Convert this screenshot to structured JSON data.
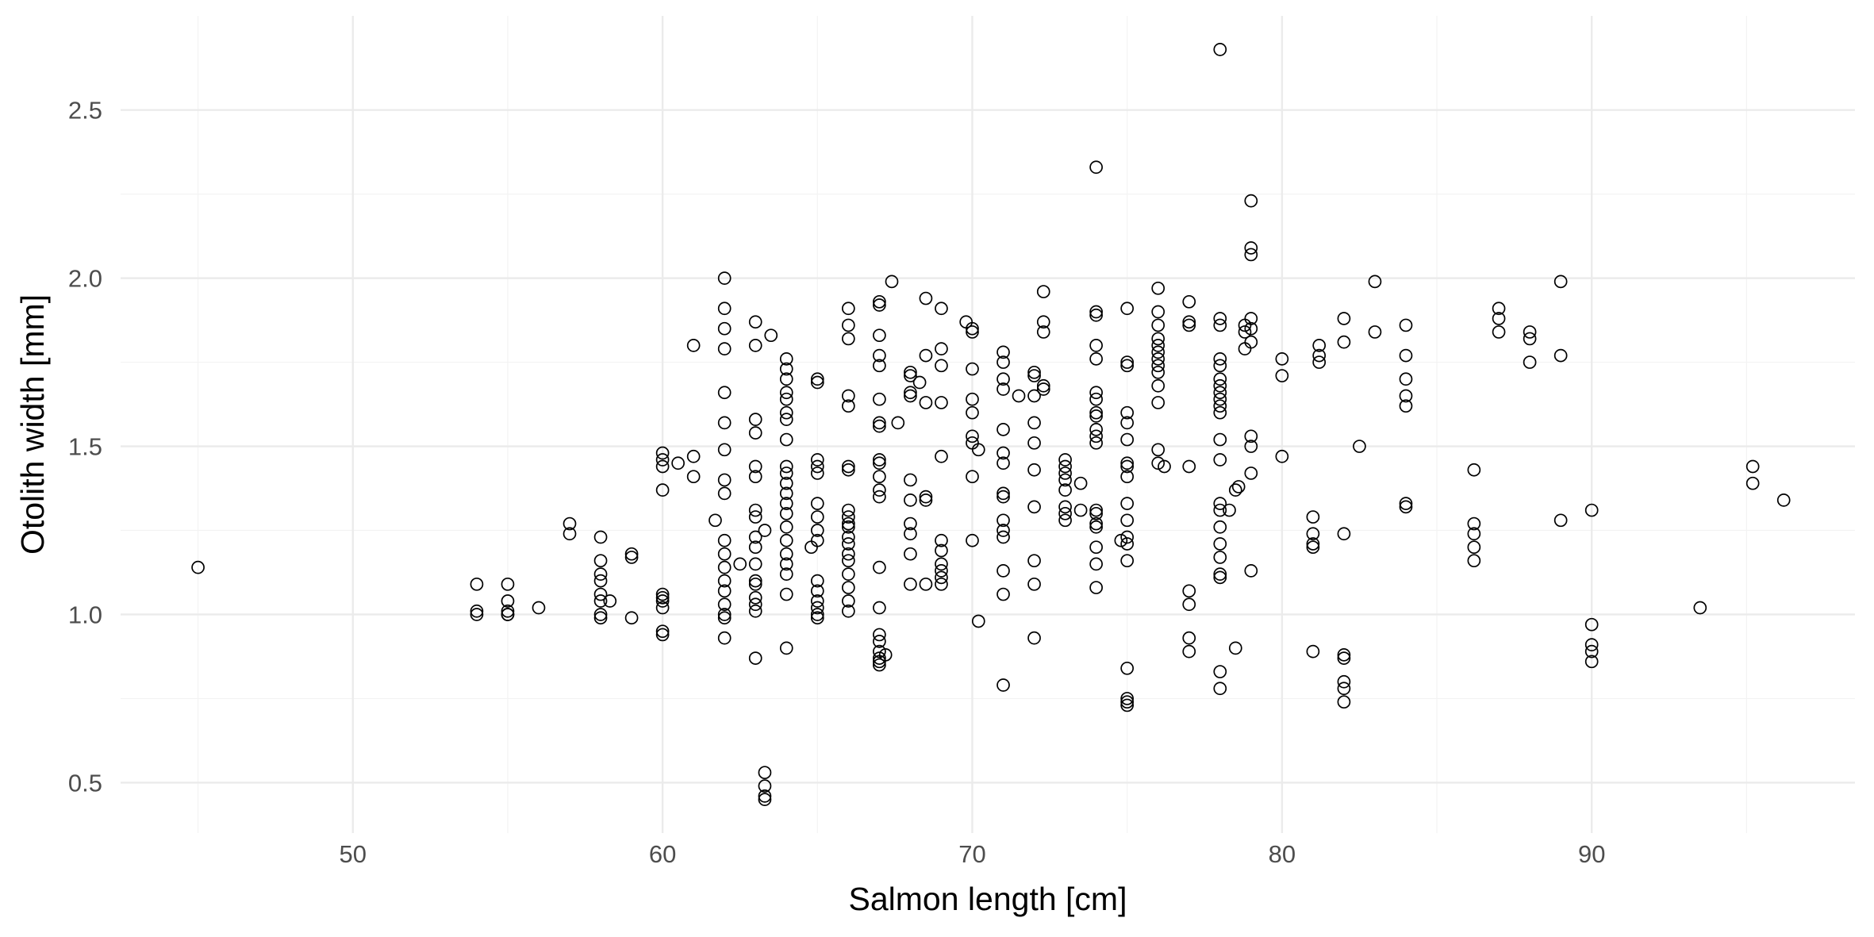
{
  "chart_data": {
    "type": "scatter",
    "title": "",
    "xlabel": "Salmon length [cm]",
    "ylabel": "Otolith width [mm]",
    "xlim": [
      42.5,
      98.5
    ],
    "ylim": [
      0.35,
      2.78
    ],
    "x_major_ticks": [
      50,
      60,
      70,
      80,
      90
    ],
    "x_minor_ticks": [
      45,
      55,
      65,
      75,
      85,
      95
    ],
    "y_major_ticks": [
      0.5,
      1.0,
      1.5,
      2.0,
      2.5
    ],
    "y_minor_ticks": [
      0.75,
      1.25,
      1.75,
      2.25
    ],
    "x_tick_labels": [
      "50",
      "60",
      "70",
      "80",
      "90"
    ],
    "y_tick_labels": [
      "0.5",
      "1.0",
      "1.5",
      "2.0",
      "2.5"
    ],
    "grid": true,
    "theme": "minimal",
    "marker": "open-circle",
    "marker_color": "#000000",
    "points": [
      [
        45,
        1.14
      ],
      [
        54,
        1.09
      ],
      [
        54,
        1.01
      ],
      [
        54,
        1.0
      ],
      [
        55,
        1.09
      ],
      [
        55,
        1.04
      ],
      [
        55,
        1.01
      ],
      [
        55,
        1.0
      ],
      [
        55,
        1.0
      ],
      [
        56,
        1.02
      ],
      [
        57,
        1.27
      ],
      [
        57,
        1.24
      ],
      [
        58,
        1.23
      ],
      [
        58,
        1.16
      ],
      [
        58,
        1.12
      ],
      [
        58,
        1.1
      ],
      [
        58,
        1.06
      ],
      [
        58,
        1.04
      ],
      [
        58,
        1.0
      ],
      [
        58,
        0.99
      ],
      [
        58.3,
        1.04
      ],
      [
        59,
        1.18
      ],
      [
        59,
        1.17
      ],
      [
        59,
        0.99
      ],
      [
        60,
        1.48
      ],
      [
        60,
        1.46
      ],
      [
        60,
        1.44
      ],
      [
        60,
        1.37
      ],
      [
        60,
        1.06
      ],
      [
        60,
        1.05
      ],
      [
        60,
        1.04
      ],
      [
        60,
        1.02
      ],
      [
        60,
        0.95
      ],
      [
        60,
        0.94
      ],
      [
        60.5,
        1.45
      ],
      [
        61,
        1.8
      ],
      [
        61,
        1.47
      ],
      [
        61,
        1.41
      ],
      [
        61.7,
        1.28
      ],
      [
        62,
        2.0
      ],
      [
        62,
        1.91
      ],
      [
        62,
        1.85
      ],
      [
        62,
        1.79
      ],
      [
        62,
        1.66
      ],
      [
        62,
        1.57
      ],
      [
        62,
        1.49
      ],
      [
        62,
        1.4
      ],
      [
        62,
        1.36
      ],
      [
        62,
        1.22
      ],
      [
        62,
        1.18
      ],
      [
        62,
        1.14
      ],
      [
        62,
        1.1
      ],
      [
        62,
        1.07
      ],
      [
        62,
        1.03
      ],
      [
        62,
        1.0
      ],
      [
        62,
        0.99
      ],
      [
        62,
        0.93
      ],
      [
        62.5,
        1.15
      ],
      [
        63,
        1.87
      ],
      [
        63,
        1.8
      ],
      [
        63,
        1.58
      ],
      [
        63,
        1.54
      ],
      [
        63,
        1.44
      ],
      [
        63,
        1.41
      ],
      [
        63,
        1.31
      ],
      [
        63,
        1.29
      ],
      [
        63,
        1.23
      ],
      [
        63,
        1.2
      ],
      [
        63,
        1.15
      ],
      [
        63,
        1.1
      ],
      [
        63,
        1.09
      ],
      [
        63,
        1.05
      ],
      [
        63,
        1.03
      ],
      [
        63,
        1.01
      ],
      [
        63,
        0.87
      ],
      [
        63.3,
        1.25
      ],
      [
        63.3,
        0.53
      ],
      [
        63.3,
        0.49
      ],
      [
        63.3,
        0.46
      ],
      [
        63.3,
        0.45
      ],
      [
        63.5,
        1.83
      ],
      [
        64,
        1.76
      ],
      [
        64,
        1.73
      ],
      [
        64,
        1.7
      ],
      [
        64,
        1.66
      ],
      [
        64,
        1.64
      ],
      [
        64,
        1.6
      ],
      [
        64,
        1.58
      ],
      [
        64,
        1.52
      ],
      [
        64,
        1.44
      ],
      [
        64,
        1.42
      ],
      [
        64,
        1.39
      ],
      [
        64,
        1.36
      ],
      [
        64,
        1.33
      ],
      [
        64,
        1.3
      ],
      [
        64,
        1.26
      ],
      [
        64,
        1.22
      ],
      [
        64,
        1.18
      ],
      [
        64,
        1.15
      ],
      [
        64,
        1.12
      ],
      [
        64,
        1.06
      ],
      [
        64,
        0.9
      ],
      [
        64.8,
        1.2
      ],
      [
        65,
        1.7
      ],
      [
        65,
        1.69
      ],
      [
        65,
        1.46
      ],
      [
        65,
        1.44
      ],
      [
        65,
        1.42
      ],
      [
        65,
        1.33
      ],
      [
        65,
        1.29
      ],
      [
        65,
        1.25
      ],
      [
        65,
        1.22
      ],
      [
        65,
        1.1
      ],
      [
        65,
        1.07
      ],
      [
        65,
        1.04
      ],
      [
        65,
        1.02
      ],
      [
        65,
        1.0
      ],
      [
        65,
        0.99
      ],
      [
        66,
        1.91
      ],
      [
        66,
        1.86
      ],
      [
        66,
        1.82
      ],
      [
        66,
        1.65
      ],
      [
        66,
        1.62
      ],
      [
        66,
        1.44
      ],
      [
        66,
        1.43
      ],
      [
        66,
        1.31
      ],
      [
        66,
        1.29
      ],
      [
        66,
        1.27
      ],
      [
        66,
        1.26
      ],
      [
        66,
        1.23
      ],
      [
        66,
        1.21
      ],
      [
        66,
        1.18
      ],
      [
        66,
        1.16
      ],
      [
        66,
        1.12
      ],
      [
        66,
        1.08
      ],
      [
        66,
        1.04
      ],
      [
        66,
        1.01
      ],
      [
        67,
        1.93
      ],
      [
        67,
        1.92
      ],
      [
        67,
        1.83
      ],
      [
        67,
        1.77
      ],
      [
        67,
        1.74
      ],
      [
        67,
        1.64
      ],
      [
        67,
        1.57
      ],
      [
        67,
        1.56
      ],
      [
        67,
        1.46
      ],
      [
        67,
        1.45
      ],
      [
        67,
        1.41
      ],
      [
        67,
        1.37
      ],
      [
        67,
        1.35
      ],
      [
        67,
        1.14
      ],
      [
        67,
        1.02
      ],
      [
        67,
        0.94
      ],
      [
        67,
        0.92
      ],
      [
        67,
        0.89
      ],
      [
        67,
        0.87
      ],
      [
        67,
        0.86
      ],
      [
        67,
        0.85
      ],
      [
        67.2,
        0.88
      ],
      [
        67.4,
        1.99
      ],
      [
        67.6,
        1.57
      ],
      [
        68,
        1.72
      ],
      [
        68,
        1.71
      ],
      [
        68,
        1.66
      ],
      [
        68,
        1.65
      ],
      [
        68,
        1.4
      ],
      [
        68,
        1.34
      ],
      [
        68,
        1.27
      ],
      [
        68,
        1.24
      ],
      [
        68,
        1.18
      ],
      [
        68,
        1.09
      ],
      [
        68.3,
        1.69
      ],
      [
        68.5,
        1.94
      ],
      [
        68.5,
        1.77
      ],
      [
        68.5,
        1.63
      ],
      [
        68.5,
        1.35
      ],
      [
        68.5,
        1.34
      ],
      [
        68.5,
        1.09
      ],
      [
        69,
        1.91
      ],
      [
        69,
        1.79
      ],
      [
        69,
        1.74
      ],
      [
        69,
        1.63
      ],
      [
        69,
        1.47
      ],
      [
        69,
        1.22
      ],
      [
        69,
        1.19
      ],
      [
        69,
        1.15
      ],
      [
        69,
        1.13
      ],
      [
        69,
        1.11
      ],
      [
        69,
        1.09
      ],
      [
        69.8,
        1.87
      ],
      [
        70,
        1.85
      ],
      [
        70,
        1.84
      ],
      [
        70,
        1.73
      ],
      [
        70,
        1.64
      ],
      [
        70,
        1.6
      ],
      [
        70,
        1.53
      ],
      [
        70,
        1.51
      ],
      [
        70,
        1.41
      ],
      [
        70,
        1.22
      ],
      [
        70.2,
        1.49
      ],
      [
        70.2,
        0.98
      ],
      [
        71,
        1.78
      ],
      [
        71,
        1.75
      ],
      [
        71,
        1.7
      ],
      [
        71,
        1.67
      ],
      [
        71,
        1.55
      ],
      [
        71,
        1.48
      ],
      [
        71,
        1.45
      ],
      [
        71,
        1.36
      ],
      [
        71,
        1.35
      ],
      [
        71,
        1.28
      ],
      [
        71,
        1.25
      ],
      [
        71,
        1.23
      ],
      [
        71,
        1.13
      ],
      [
        71,
        1.06
      ],
      [
        71,
        0.79
      ],
      [
        71.5,
        1.65
      ],
      [
        72,
        1.72
      ],
      [
        72,
        1.71
      ],
      [
        72,
        1.65
      ],
      [
        72,
        1.57
      ],
      [
        72,
        1.51
      ],
      [
        72,
        1.43
      ],
      [
        72,
        1.32
      ],
      [
        72,
        1.16
      ],
      [
        72,
        1.09
      ],
      [
        72,
        0.93
      ],
      [
        72.3,
        1.96
      ],
      [
        72.3,
        1.87
      ],
      [
        72.3,
        1.84
      ],
      [
        72.3,
        1.68
      ],
      [
        72.3,
        1.67
      ],
      [
        73,
        1.46
      ],
      [
        73,
        1.44
      ],
      [
        73,
        1.42
      ],
      [
        73,
        1.4
      ],
      [
        73,
        1.37
      ],
      [
        73,
        1.32
      ],
      [
        73,
        1.3
      ],
      [
        73,
        1.28
      ],
      [
        73.5,
        1.39
      ],
      [
        73.5,
        1.31
      ],
      [
        74,
        2.33
      ],
      [
        74,
        1.9
      ],
      [
        74,
        1.89
      ],
      [
        74,
        1.8
      ],
      [
        74,
        1.76
      ],
      [
        74,
        1.66
      ],
      [
        74,
        1.64
      ],
      [
        74,
        1.6
      ],
      [
        74,
        1.59
      ],
      [
        74,
        1.55
      ],
      [
        74,
        1.53
      ],
      [
        74,
        1.51
      ],
      [
        74,
        1.31
      ],
      [
        74,
        1.3
      ],
      [
        74,
        1.27
      ],
      [
        74,
        1.26
      ],
      [
        74,
        1.2
      ],
      [
        74,
        1.15
      ],
      [
        74,
        1.08
      ],
      [
        74.8,
        1.22
      ],
      [
        75,
        1.91
      ],
      [
        75,
        1.75
      ],
      [
        75,
        1.74
      ],
      [
        75,
        1.6
      ],
      [
        75,
        1.57
      ],
      [
        75,
        1.52
      ],
      [
        75,
        1.45
      ],
      [
        75,
        1.44
      ],
      [
        75,
        1.41
      ],
      [
        75,
        1.33
      ],
      [
        75,
        1.28
      ],
      [
        75,
        1.23
      ],
      [
        75,
        1.21
      ],
      [
        75,
        1.16
      ],
      [
        75,
        0.84
      ],
      [
        75,
        0.75
      ],
      [
        75,
        0.74
      ],
      [
        75,
        0.73
      ],
      [
        76,
        1.97
      ],
      [
        76,
        1.9
      ],
      [
        76,
        1.86
      ],
      [
        76,
        1.82
      ],
      [
        76,
        1.8
      ],
      [
        76,
        1.78
      ],
      [
        76,
        1.76
      ],
      [
        76,
        1.74
      ],
      [
        76,
        1.72
      ],
      [
        76,
        1.68
      ],
      [
        76,
        1.63
      ],
      [
        76,
        1.49
      ],
      [
        76,
        1.45
      ],
      [
        76.2,
        1.44
      ],
      [
        77,
        1.93
      ],
      [
        77,
        1.87
      ],
      [
        77,
        1.86
      ],
      [
        77,
        1.44
      ],
      [
        77,
        1.07
      ],
      [
        77,
        1.03
      ],
      [
        77,
        0.93
      ],
      [
        77,
        0.89
      ],
      [
        78,
        2.68
      ],
      [
        78,
        1.88
      ],
      [
        78,
        1.86
      ],
      [
        78,
        1.76
      ],
      [
        78,
        1.74
      ],
      [
        78,
        1.7
      ],
      [
        78,
        1.68
      ],
      [
        78,
        1.66
      ],
      [
        78,
        1.64
      ],
      [
        78,
        1.62
      ],
      [
        78,
        1.6
      ],
      [
        78,
        1.52
      ],
      [
        78,
        1.46
      ],
      [
        78,
        1.33
      ],
      [
        78,
        1.31
      ],
      [
        78,
        1.26
      ],
      [
        78,
        1.21
      ],
      [
        78,
        1.17
      ],
      [
        78,
        1.12
      ],
      [
        78,
        1.11
      ],
      [
        78,
        0.83
      ],
      [
        78,
        0.78
      ],
      [
        78.3,
        1.31
      ],
      [
        78.5,
        1.37
      ],
      [
        78.5,
        0.9
      ],
      [
        78.6,
        1.38
      ],
      [
        78.8,
        1.86
      ],
      [
        78.8,
        1.84
      ],
      [
        78.8,
        1.79
      ],
      [
        79,
        2.23
      ],
      [
        79,
        2.09
      ],
      [
        79,
        2.07
      ],
      [
        79,
        1.88
      ],
      [
        79,
        1.85
      ],
      [
        79,
        1.81
      ],
      [
        79,
        1.53
      ],
      [
        79,
        1.5
      ],
      [
        79,
        1.42
      ],
      [
        79,
        1.13
      ],
      [
        80,
        1.76
      ],
      [
        80,
        1.71
      ],
      [
        80,
        1.47
      ],
      [
        81,
        1.29
      ],
      [
        81,
        1.24
      ],
      [
        81,
        1.21
      ],
      [
        81,
        1.2
      ],
      [
        81,
        0.89
      ],
      [
        81.2,
        1.8
      ],
      [
        81.2,
        1.77
      ],
      [
        81.2,
        1.75
      ],
      [
        82,
        1.88
      ],
      [
        82,
        1.81
      ],
      [
        82,
        1.24
      ],
      [
        82,
        0.88
      ],
      [
        82,
        0.87
      ],
      [
        82,
        0.8
      ],
      [
        82,
        0.78
      ],
      [
        82,
        0.74
      ],
      [
        82.5,
        1.5
      ],
      [
        83,
        1.99
      ],
      [
        83,
        1.84
      ],
      [
        84,
        1.86
      ],
      [
        84,
        1.77
      ],
      [
        84,
        1.7
      ],
      [
        84,
        1.65
      ],
      [
        84,
        1.62
      ],
      [
        84,
        1.33
      ],
      [
        84,
        1.32
      ],
      [
        86.2,
        1.43
      ],
      [
        86.2,
        1.27
      ],
      [
        86.2,
        1.24
      ],
      [
        86.2,
        1.2
      ],
      [
        86.2,
        1.16
      ],
      [
        87,
        1.91
      ],
      [
        87,
        1.88
      ],
      [
        87,
        1.84
      ],
      [
        88,
        1.84
      ],
      [
        88,
        1.82
      ],
      [
        88,
        1.75
      ],
      [
        89,
        1.99
      ],
      [
        89,
        1.77
      ],
      [
        89,
        1.28
      ],
      [
        90,
        1.31
      ],
      [
        90,
        0.97
      ],
      [
        90,
        0.91
      ],
      [
        90,
        0.89
      ],
      [
        90,
        0.86
      ],
      [
        93.5,
        1.02
      ],
      [
        95.2,
        1.44
      ],
      [
        95.2,
        1.39
      ],
      [
        96.2,
        1.34
      ]
    ]
  }
}
